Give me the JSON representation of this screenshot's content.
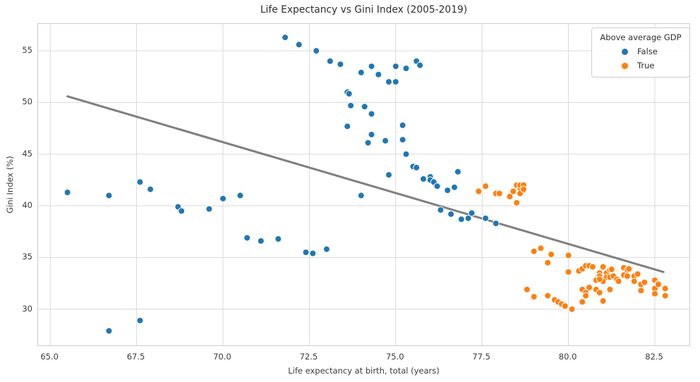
{
  "chart_data": {
    "type": "scatter",
    "title": "Life Expectancy vs Gini Index (2005-2019)",
    "xlabel": "Life expectancy at birth, total (years)",
    "ylabel": "Gini Index (%)",
    "xlim": [
      64.65,
      83.5
    ],
    "ylim": [
      26.5,
      57.6
    ],
    "x_ticks": [
      65.0,
      67.5,
      70.0,
      72.5,
      75.0,
      77.5,
      80.0,
      82.5
    ],
    "x_tick_labels": [
      "65.0",
      "67.5",
      "70.0",
      "72.5",
      "75.0",
      "77.5",
      "80.0",
      "82.5"
    ],
    "y_ticks": [
      30,
      35,
      40,
      45,
      50,
      55
    ],
    "y_tick_labels": [
      "30",
      "35",
      "40",
      "45",
      "50",
      "55"
    ],
    "grid": true,
    "grid_color": "#dadada",
    "legend": {
      "title": "Above average GDP",
      "position": "upper right",
      "entries": [
        {
          "label": "False",
          "color": "#1f77b4"
        },
        {
          "label": "True",
          "color": "#ff7f0e"
        }
      ]
    },
    "marker": {
      "radius": 4.5,
      "edge_color": "#ffffff",
      "edge_width": 1
    },
    "trend_line": {
      "color": "#7f7f7f",
      "width": 3,
      "from": [
        65.5,
        50.6
      ],
      "to": [
        82.75,
        33.6
      ]
    },
    "series": [
      {
        "name": "False",
        "color": "#1f77b4",
        "points": [
          [
            65.5,
            41.3
          ],
          [
            66.7,
            41.0
          ],
          [
            66.7,
            27.9
          ],
          [
            67.6,
            28.9
          ],
          [
            67.6,
            42.3
          ],
          [
            67.9,
            41.6
          ],
          [
            68.7,
            39.9
          ],
          [
            68.8,
            39.5
          ],
          [
            69.6,
            39.7
          ],
          [
            70.0,
            40.7
          ],
          [
            70.5,
            41.0
          ],
          [
            70.7,
            36.9
          ],
          [
            71.1,
            36.6
          ],
          [
            71.6,
            36.8
          ],
          [
            72.4,
            35.5
          ],
          [
            72.6,
            35.4
          ],
          [
            73.0,
            35.8
          ],
          [
            71.8,
            56.3
          ],
          [
            72.2,
            55.6
          ],
          [
            72.7,
            55.0
          ],
          [
            73.1,
            54.0
          ],
          [
            73.4,
            53.7
          ],
          [
            74.0,
            52.9
          ],
          [
            74.3,
            53.5
          ],
          [
            74.5,
            52.7
          ],
          [
            74.8,
            52.0
          ],
          [
            75.0,
            52.0
          ],
          [
            75.0,
            53.5
          ],
          [
            75.3,
            53.3
          ],
          [
            75.6,
            54.0
          ],
          [
            75.7,
            53.6
          ],
          [
            73.6,
            51.0
          ],
          [
            73.65,
            50.85
          ],
          [
            73.7,
            49.7
          ],
          [
            74.1,
            49.6
          ],
          [
            74.3,
            48.9
          ],
          [
            73.6,
            47.7
          ],
          [
            74.3,
            46.9
          ],
          [
            74.2,
            46.1
          ],
          [
            74.7,
            46.3
          ],
          [
            75.2,
            47.8
          ],
          [
            75.2,
            46.4
          ],
          [
            75.3,
            45.0
          ],
          [
            74.8,
            43.0
          ],
          [
            75.5,
            43.8
          ],
          [
            75.6,
            43.7
          ],
          [
            76.8,
            43.3
          ],
          [
            74.0,
            41.0
          ],
          [
            75.8,
            42.6
          ],
          [
            76.0,
            42.8
          ],
          [
            76.0,
            42.5
          ],
          [
            76.1,
            42.3
          ],
          [
            76.2,
            41.9
          ],
          [
            76.5,
            41.5
          ],
          [
            76.7,
            41.8
          ],
          [
            76.3,
            39.6
          ],
          [
            76.6,
            39.2
          ],
          [
            76.9,
            38.7
          ],
          [
            77.1,
            38.8
          ],
          [
            77.2,
            39.3
          ],
          [
            77.6,
            38.8
          ],
          [
            77.9,
            38.3
          ]
        ]
      },
      {
        "name": "True",
        "color": "#ff7f0e",
        "points": [
          [
            77.4,
            41.4
          ],
          [
            77.6,
            41.9
          ],
          [
            77.9,
            41.2
          ],
          [
            78.0,
            41.2
          ],
          [
            78.3,
            40.9
          ],
          [
            78.4,
            41.4
          ],
          [
            78.5,
            42.0
          ],
          [
            78.6,
            41.7
          ],
          [
            78.6,
            42.0
          ],
          [
            78.7,
            42.0
          ],
          [
            78.7,
            41.5
          ],
          [
            78.6,
            41.2
          ],
          [
            78.7,
            41.6
          ],
          [
            78.5,
            40.3
          ],
          [
            78.8,
            31.9
          ],
          [
            79.0,
            31.2
          ],
          [
            79.0,
            35.6
          ],
          [
            79.2,
            35.9
          ],
          [
            79.4,
            34.5
          ],
          [
            79.5,
            35.3
          ],
          [
            79.4,
            31.3
          ],
          [
            79.6,
            30.9
          ],
          [
            79.7,
            30.7
          ],
          [
            79.8,
            30.5
          ],
          [
            79.9,
            30.3
          ],
          [
            80.0,
            35.2
          ],
          [
            80.1,
            30.0
          ],
          [
            80.0,
            33.6
          ],
          [
            80.3,
            33.7
          ],
          [
            80.4,
            33.9
          ],
          [
            80.5,
            34.2
          ],
          [
            80.6,
            34.2
          ],
          [
            80.7,
            34.1
          ],
          [
            80.4,
            31.9
          ],
          [
            80.5,
            31.6
          ],
          [
            80.6,
            32.1
          ],
          [
            80.8,
            31.9
          ],
          [
            80.4,
            30.7
          ],
          [
            80.5,
            31.3
          ],
          [
            80.8,
            32.8
          ],
          [
            80.9,
            33.5
          ],
          [
            80.9,
            33.2
          ],
          [
            81.1,
            33.5
          ],
          [
            81.0,
            30.8
          ],
          [
            80.9,
            31.6
          ],
          [
            81.2,
            31.9
          ],
          [
            81.0,
            34.1
          ],
          [
            81.2,
            33.8
          ],
          [
            81.25,
            33.85
          ],
          [
            81.1,
            33.1
          ],
          [
            81.2,
            33.1
          ],
          [
            81.3,
            33.2
          ],
          [
            81.4,
            32.9
          ],
          [
            81.45,
            32.7
          ],
          [
            81.0,
            32.7
          ],
          [
            80.9,
            32.9
          ],
          [
            81.6,
            34.0
          ],
          [
            81.7,
            33.8
          ],
          [
            81.75,
            33.9
          ],
          [
            81.6,
            33.3
          ],
          [
            81.7,
            33.2
          ],
          [
            81.9,
            33.2
          ],
          [
            81.9,
            32.7
          ],
          [
            82.0,
            33.4
          ],
          [
            82.1,
            32.4
          ],
          [
            82.2,
            32.6
          ],
          [
            82.1,
            31.8
          ],
          [
            82.5,
            32.8
          ],
          [
            82.6,
            32.5
          ],
          [
            82.5,
            32.0
          ],
          [
            82.6,
            32.4
          ],
          [
            82.5,
            31.5
          ],
          [
            82.8,
            31.3
          ],
          [
            82.8,
            32.0
          ]
        ]
      }
    ]
  }
}
